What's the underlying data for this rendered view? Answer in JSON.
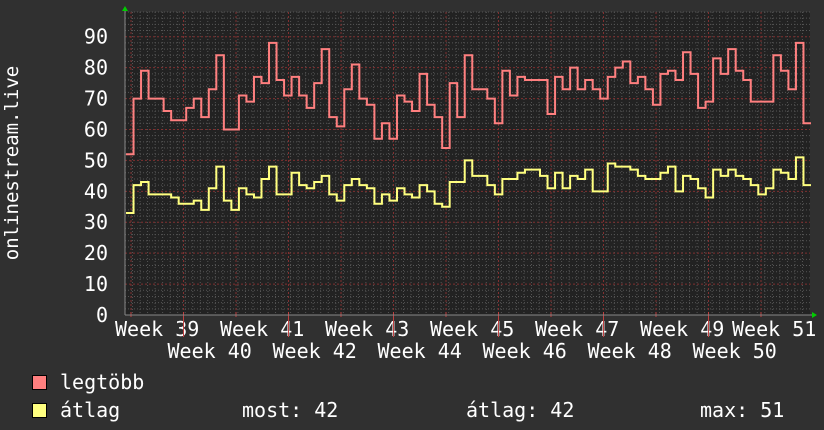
{
  "chart_data": {
    "type": "line",
    "step": true,
    "ylabel": "onlinestream.live",
    "xlabel": "",
    "ylim": [
      0,
      98
    ],
    "yticks": [
      0,
      10,
      20,
      30,
      40,
      50,
      60,
      70,
      80,
      90
    ],
    "xtick_labels": [
      "Week 39",
      "Week 40",
      "Week 41",
      "Week 42",
      "Week 43",
      "Week 44",
      "Week 45",
      "Week 46",
      "Week 47",
      "Week 48",
      "Week 49",
      "Week 50",
      "Week 51"
    ],
    "grid": true,
    "legend_placement": "bottom-left",
    "series": [
      {
        "name": "legtöbb",
        "color": "#ff7f7f",
        "values": [
          52,
          70,
          79,
          70,
          70,
          66,
          63,
          63,
          67,
          70,
          64,
          73,
          84,
          60,
          60,
          71,
          69,
          77,
          75,
          88,
          76,
          71,
          77,
          71,
          67,
          75,
          86,
          64,
          61,
          73,
          81,
          70,
          68,
          57,
          62,
          57,
          71,
          69,
          66,
          78,
          68,
          64,
          54,
          75,
          64,
          84,
          73,
          73,
          70,
          62,
          79,
          71,
          77,
          76,
          76,
          76,
          65,
          77,
          73,
          80,
          73,
          76,
          73,
          70,
          77,
          80,
          82,
          75,
          77,
          73,
          68,
          78,
          79,
          76,
          85,
          78,
          67,
          69,
          83,
          78,
          86,
          79,
          76,
          69,
          69,
          69,
          84,
          79,
          73,
          88,
          62
        ]
      },
      {
        "name": "átlag",
        "color": "#ffff7f",
        "values": [
          33,
          42,
          43,
          39,
          39,
          39,
          38,
          36,
          36,
          37,
          34,
          41,
          48,
          37,
          34,
          41,
          39,
          38,
          44,
          48,
          39,
          39,
          46,
          42,
          41,
          43,
          45,
          39,
          37,
          42,
          44,
          42,
          41,
          36,
          39,
          37,
          41,
          39,
          38,
          42,
          40,
          36,
          35,
          43,
          43,
          50,
          45,
          45,
          42,
          39,
          44,
          44,
          46,
          47,
          47,
          45,
          41,
          46,
          41,
          45,
          44,
          47,
          40,
          40,
          49,
          48,
          48,
          47,
          45,
          44,
          44,
          46,
          48,
          40,
          45,
          44,
          41,
          38,
          47,
          45,
          47,
          45,
          44,
          42,
          39,
          41,
          47,
          46,
          44,
          51,
          42
        ]
      }
    ]
  },
  "legend": {
    "max_label": "legtöbb",
    "avg_label": "átlag",
    "current": "most: 42",
    "average": "átlag: 42",
    "maximum": "max: 51"
  },
  "colors": {
    "background": "#303030",
    "plot_background": "#222222",
    "axis_arrow": "#00cc00",
    "major_grid": "#803030",
    "minor_grid": "#555555"
  }
}
